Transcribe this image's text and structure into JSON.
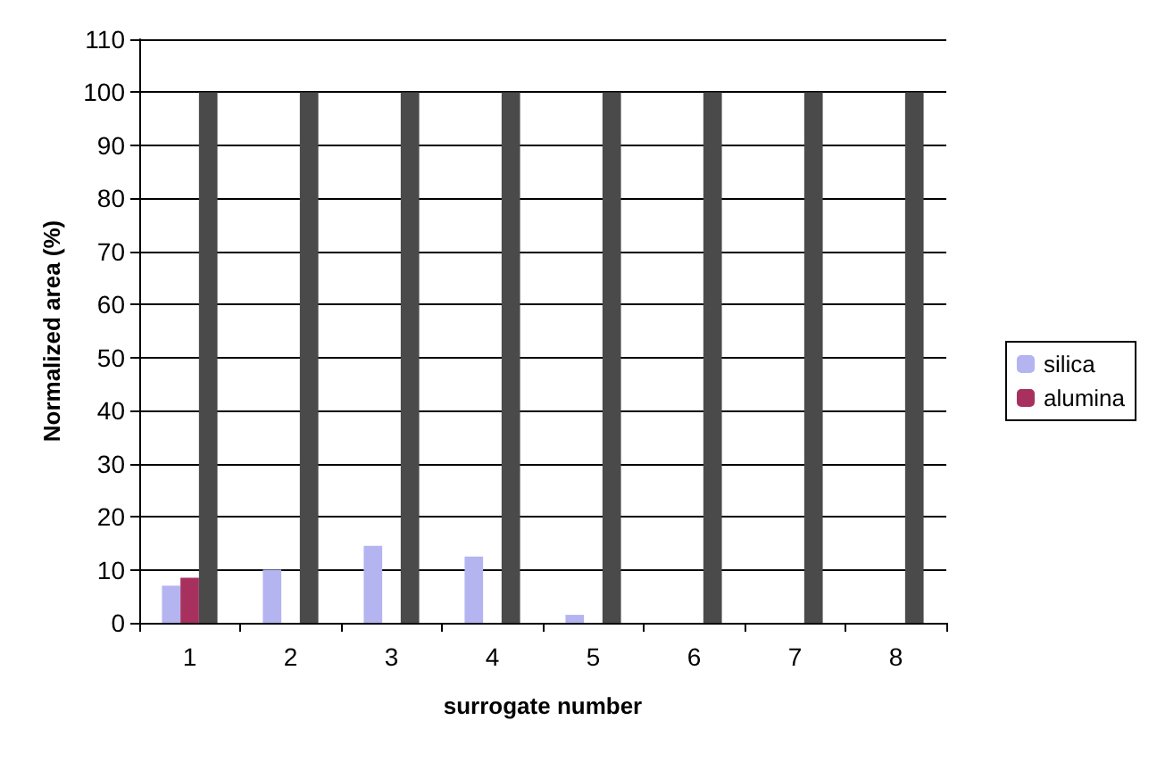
{
  "chart_data": {
    "type": "bar",
    "xlabel": "surrogate number",
    "ylabel": "Normalized area (%)",
    "categories": [
      "1",
      "2",
      "3",
      "4",
      "5",
      "6",
      "7",
      "8"
    ],
    "series": [
      {
        "name": "silica",
        "color": "#b4b4f0",
        "values": [
          7,
          10,
          14.5,
          12.5,
          1.5,
          0,
          0,
          0
        ]
      },
      {
        "name": "alumina",
        "color": "#a8305e",
        "values": [
          8.5,
          0,
          0,
          0,
          0,
          0,
          0,
          0
        ]
      },
      {
        "color": "#4a4a4a",
        "values": [
          100,
          100,
          100,
          100,
          100,
          100,
          100,
          100
        ]
      }
    ],
    "ylim": [
      0,
      110
    ],
    "yticks": [
      0,
      10,
      20,
      30,
      40,
      50,
      60,
      70,
      80,
      90,
      100,
      110
    ],
    "grid": "y",
    "legend": "right"
  }
}
